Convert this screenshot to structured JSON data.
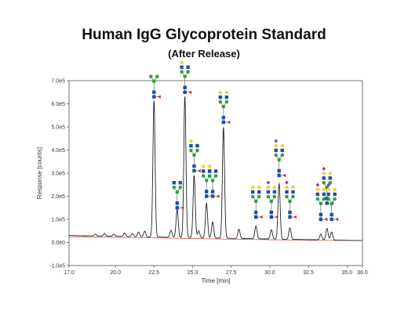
{
  "chart_data": {
    "type": "line",
    "title": "Human IgG Glycoprotein Standard",
    "subtitle": "(After Release)",
    "xlabel": "Time [min]",
    "ylabel": "Response [counts]",
    "xlim": [
      17.0,
      36.0
    ],
    "ylim": [
      -100000,
      700000
    ],
    "x_ticks": [
      "17.0",
      "20.0",
      "22.5",
      "25.0",
      "27.5",
      "30.0",
      "32.5",
      "35.0",
      "36.0"
    ],
    "y_ticks": [
      "-1.0e5",
      "0.0e0",
      "1.0e5",
      "2.0e5",
      "3.0e5",
      "4.0e5",
      "5.0e5",
      "6.0e5",
      "7.0e5"
    ],
    "grid": false,
    "legend": "none",
    "series": [
      {
        "color": "#222222",
        "baseline": 30000,
        "peaks": [
          {
            "x": 18.7,
            "y": 8000
          },
          {
            "x": 19.3,
            "y": 12000
          },
          {
            "x": 19.9,
            "y": 9000
          },
          {
            "x": 20.6,
            "y": 15000
          },
          {
            "x": 21.1,
            "y": 13000
          },
          {
            "x": 21.5,
            "y": 20000
          },
          {
            "x": 21.9,
            "y": 25000
          },
          {
            "x": 22.5,
            "y": 590000
          },
          {
            "x": 23.6,
            "y": 30000
          },
          {
            "x": 24.0,
            "y": 120000
          },
          {
            "x": 24.5,
            "y": 610000
          },
          {
            "x": 25.1,
            "y": 270000
          },
          {
            "x": 25.4,
            "y": 30000
          },
          {
            "x": 25.9,
            "y": 150000
          },
          {
            "x": 26.3,
            "y": 70000
          },
          {
            "x": 27.0,
            "y": 480000
          },
          {
            "x": 28.0,
            "y": 40000
          },
          {
            "x": 29.1,
            "y": 55000
          },
          {
            "x": 30.1,
            "y": 40000
          },
          {
            "x": 30.6,
            "y": 240000
          },
          {
            "x": 31.3,
            "y": 50000
          },
          {
            "x": 33.3,
            "y": 25000
          },
          {
            "x": 33.7,
            "y": 50000
          },
          {
            "x": 34.0,
            "y": 35000
          }
        ]
      },
      {
        "color": "#d84a4a",
        "points": [
          [
            17.0,
            25000
          ],
          [
            20.0,
            22000
          ],
          [
            22.5,
            20000
          ],
          [
            25.0,
            17000
          ],
          [
            27.5,
            14000
          ],
          [
            30.0,
            12000
          ],
          [
            32.5,
            10000
          ],
          [
            36.0,
            8000
          ]
        ]
      }
    ]
  },
  "glycan_icons": [
    {
      "x": 22.5,
      "y": 630000,
      "variant": "g0"
    },
    {
      "x": 24.0,
      "y": 150000,
      "variant": "g0f"
    },
    {
      "x": 24.5,
      "y": 650000,
      "variant": "g1"
    },
    {
      "x": 25.1,
      "y": 310000,
      "variant": "g1"
    },
    {
      "x": 25.9,
      "y": 200000,
      "variant": "g1"
    },
    {
      "x": 26.3,
      "y": 200000,
      "variant": "g1"
    },
    {
      "x": 27.0,
      "y": 520000,
      "variant": "g2"
    },
    {
      "x": 29.1,
      "y": 110000,
      "variant": "g2"
    },
    {
      "x": 30.1,
      "y": 110000,
      "variant": "g2s"
    },
    {
      "x": 30.6,
      "y": 290000,
      "variant": "g2s"
    },
    {
      "x": 31.3,
      "y": 110000,
      "variant": "g2s"
    },
    {
      "x": 33.3,
      "y": 100000,
      "variant": "g2s"
    },
    {
      "x": 33.7,
      "y": 170000,
      "variant": "g2s"
    },
    {
      "x": 34.0,
      "y": 100000,
      "variant": "g2s"
    }
  ],
  "colors": {
    "glcnac": "#1f4ea3",
    "mannose": "#2e9e3f",
    "galactose": "#e8d44d",
    "fucose": "#d62828",
    "sialic": "#8e3fa0"
  }
}
